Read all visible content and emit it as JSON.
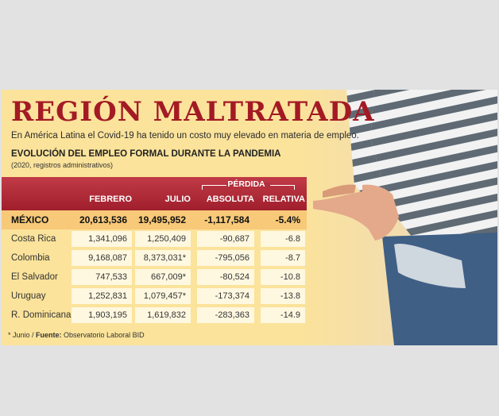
{
  "title": "REGIÓN MALTRATADA",
  "subtitle": "En América Latina el Covid-19 ha tenido un costo muy elevado en materia de empleo.",
  "section_title": "EVOLUCIÓN DEL EMPLEO FORMAL DURANTE LA PANDEMIA",
  "section_note": "(2020, registros administrativos)",
  "table": {
    "group_header": "PÉRDIDA",
    "headers": [
      "FEBRERO",
      "JULIO",
      "ABSOLUTA",
      "RELATIVA"
    ],
    "rows": [
      {
        "country": "MÉXICO",
        "feb": "20,613,536",
        "jul": "19,495,952",
        "abs": "-1,117,584",
        "rel": "-5.4%"
      },
      {
        "country": "Costa Rica",
        "feb": "1,341,096",
        "jul": "1,250,409",
        "abs": "-90,687",
        "rel": "-6.8"
      },
      {
        "country": "Colombia",
        "feb": "9,168,087",
        "jul": "8,373,031*",
        "abs": "-795,056",
        "rel": "-8.7"
      },
      {
        "country": "El Salvador",
        "feb": "747,533",
        "jul": "667,009*",
        "abs": "-80,524",
        "rel": "-10.8"
      },
      {
        "country": "Uruguay",
        "feb": "1,252,831",
        "jul": "1,079,457*",
        "abs": "-173,374",
        "rel": "-13.8"
      },
      {
        "country": "R. Dominicana",
        "feb": "1,903,195",
        "jul": "1,619,832",
        "abs": "-283,363",
        "rel": "-14.9"
      }
    ]
  },
  "footnote": {
    "prefix": "* Junio / ",
    "source_label": "Fuente:",
    "source": " Observatorio Laboral BID"
  },
  "colors": {
    "background": "#fbe39b",
    "title": "#a31a24",
    "header": "#a01f2c",
    "highlight_row": "#f7c979"
  }
}
